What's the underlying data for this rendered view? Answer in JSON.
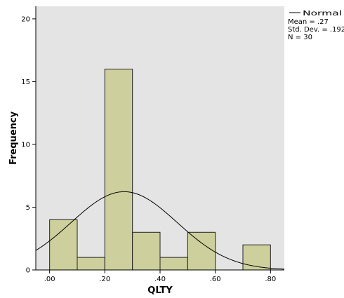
{
  "chart_data": {
    "type": "bar",
    "subtype": "histogram",
    "xlabel": "QLTY",
    "ylabel": "Frequency",
    "xlim": [
      -0.05,
      0.85
    ],
    "ylim": [
      0,
      21
    ],
    "bin_width": 0.1,
    "bins": [
      {
        "start": 0.0,
        "end": 0.1,
        "count": 4
      },
      {
        "start": 0.1,
        "end": 0.2,
        "count": 1
      },
      {
        "start": 0.2,
        "end": 0.3,
        "count": 16
      },
      {
        "start": 0.3,
        "end": 0.4,
        "count": 3
      },
      {
        "start": 0.4,
        "end": 0.5,
        "count": 1
      },
      {
        "start": 0.5,
        "end": 0.6,
        "count": 3
      },
      {
        "start": 0.6,
        "end": 0.7,
        "count": 0
      },
      {
        "start": 0.7,
        "end": 0.8,
        "count": 2
      }
    ],
    "x_ticks": [
      {
        "value": 0.0,
        "label": ".00"
      },
      {
        "value": 0.2,
        "label": ".20"
      },
      {
        "value": 0.4,
        "label": ".40"
      },
      {
        "value": 0.6,
        "label": ".60"
      },
      {
        "value": 0.8,
        "label": ".80"
      }
    ],
    "y_ticks": [
      {
        "value": 0,
        "label": "0"
      },
      {
        "value": 5,
        "label": "5"
      },
      {
        "value": 10,
        "label": "10"
      },
      {
        "value": 15,
        "label": "15"
      },
      {
        "value": 20,
        "label": "20"
      }
    ],
    "normal_curve": {
      "mean": 0.27,
      "sd": 0.192,
      "n": 30
    },
    "legend": {
      "series_label": "Normal",
      "lines": [
        "Mean = .27",
        "Std. Dev. = .192",
        "N = 30"
      ],
      "placement": "top-right"
    },
    "grid": false
  },
  "colors": {
    "plot_background": "#e4e4e4",
    "bar_fill": "#cdd09c",
    "bar_stroke": "#222222",
    "curve": "#000000"
  }
}
